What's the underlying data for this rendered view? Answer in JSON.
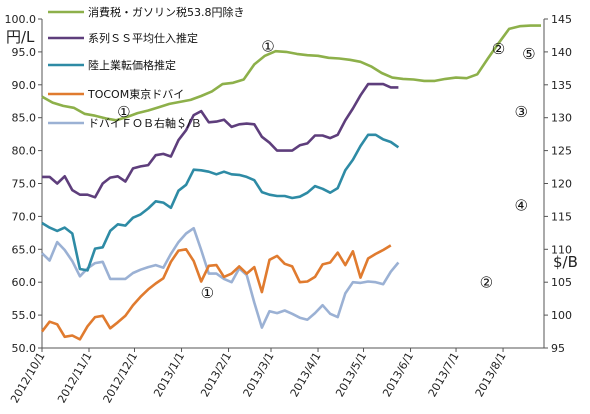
{
  "chart_data": {
    "type": "line",
    "left_axis": {
      "unit": "円/L",
      "range": [
        50.0,
        100.0
      ],
      "ticks": [
        "50.0",
        "55.0",
        "60.0",
        "65.0",
        "70.0",
        "75.0",
        "80.0",
        "85.0",
        "90.0",
        "95.0",
        "100.0"
      ]
    },
    "right_axis": {
      "unit": "$/B",
      "range": [
        95,
        145
      ],
      "ticks": [
        "95",
        "100",
        "105",
        "110",
        "115",
        "120",
        "125",
        "130",
        "135",
        "140",
        "145"
      ]
    },
    "x_axis": {
      "range": [
        "2012-10-01",
        "2013-08-28"
      ],
      "tick_labels": [
        "2012/10/1",
        "2012/11/1",
        "2012/12/1",
        "2013/1/1",
        "2013/2/1",
        "2013/3/1",
        "2013/4/1",
        "2013/5/1",
        "2013/6/1",
        "2013/7/1",
        "2013/8/1"
      ]
    },
    "grid": false,
    "legend_placement": "top-left, inside",
    "series": [
      {
        "name": "消費税・ガソリン税53.8円除き",
        "color": "#8DB04A",
        "axis": "left",
        "points": [
          [
            "2012-10-01",
            88.2
          ],
          [
            "2012-10-08",
            87.3
          ],
          [
            "2012-10-15",
            86.8
          ],
          [
            "2012-10-22",
            86.5
          ],
          [
            "2012-10-29",
            85.6
          ],
          [
            "2012-11-05",
            85.3
          ],
          [
            "2012-11-12",
            84.9
          ],
          [
            "2012-11-19",
            84.6
          ],
          [
            "2012-11-26",
            85.1
          ],
          [
            "2012-12-03",
            85.7
          ],
          [
            "2012-12-10",
            86.1
          ],
          [
            "2012-12-17",
            86.6
          ],
          [
            "2012-12-24",
            87.1
          ],
          [
            "2012-12-31",
            87.4
          ],
          [
            "2013-01-07",
            87.7
          ],
          [
            "2013-01-14",
            88.3
          ],
          [
            "2013-01-21",
            89.0
          ],
          [
            "2013-01-28",
            90.1
          ],
          [
            "2013-02-04",
            90.3
          ],
          [
            "2013-02-11",
            90.8
          ],
          [
            "2013-02-18",
            93.1
          ],
          [
            "2013-02-25",
            94.4
          ],
          [
            "2013-03-04",
            95.1
          ],
          [
            "2013-03-11",
            95.0
          ],
          [
            "2013-03-18",
            94.7
          ],
          [
            "2013-03-25",
            94.5
          ],
          [
            "2013-04-01",
            94.4
          ],
          [
            "2013-04-08",
            94.1
          ],
          [
            "2013-04-15",
            94.0
          ],
          [
            "2013-04-22",
            93.8
          ],
          [
            "2013-04-29",
            93.5
          ],
          [
            "2013-05-06",
            92.8
          ],
          [
            "2013-05-13",
            91.8
          ],
          [
            "2013-05-20",
            91.1
          ],
          [
            "2013-05-27",
            90.9
          ],
          [
            "2013-06-03",
            90.8
          ],
          [
            "2013-06-10",
            90.6
          ],
          [
            "2013-06-17",
            90.6
          ],
          [
            "2013-06-24",
            90.9
          ],
          [
            "2013-07-01",
            91.1
          ],
          [
            "2013-07-08",
            91.0
          ],
          [
            "2013-07-15",
            91.6
          ],
          [
            "2013-07-22",
            94.0
          ],
          [
            "2013-07-29",
            96.3
          ],
          [
            "2013-08-05",
            98.5
          ],
          [
            "2013-08-12",
            98.9
          ],
          [
            "2013-08-19",
            99.0
          ],
          [
            "2013-08-26",
            99.0
          ]
        ]
      },
      {
        "name": "系列ＳＳ平均仕入推定",
        "color": "#5E3E7C",
        "axis": "left",
        "points": [
          [
            "2012-10-01",
            76.0
          ],
          [
            "2012-10-06",
            76.0
          ],
          [
            "2012-10-11",
            75.0
          ],
          [
            "2012-10-16",
            76.1
          ],
          [
            "2012-10-21",
            74.0
          ],
          [
            "2012-10-26",
            73.3
          ],
          [
            "2012-10-31",
            73.3
          ],
          [
            "2012-11-05",
            72.9
          ],
          [
            "2012-11-10",
            75.0
          ],
          [
            "2012-11-15",
            75.9
          ],
          [
            "2012-11-20",
            76.1
          ],
          [
            "2012-11-25",
            75.3
          ],
          [
            "2012-11-30",
            77.3
          ],
          [
            "2012-12-05",
            77.6
          ],
          [
            "2012-12-10",
            77.8
          ],
          [
            "2012-12-15",
            79.3
          ],
          [
            "2012-12-20",
            79.5
          ],
          [
            "2012-12-25",
            79.1
          ],
          [
            "2012-12-30",
            81.6
          ],
          [
            "2013-01-04",
            83.1
          ],
          [
            "2013-01-09",
            85.4
          ],
          [
            "2013-01-14",
            86.0
          ],
          [
            "2013-01-19",
            84.3
          ],
          [
            "2013-01-24",
            84.4
          ],
          [
            "2013-01-29",
            84.7
          ],
          [
            "2013-02-03",
            83.6
          ],
          [
            "2013-02-08",
            84.0
          ],
          [
            "2013-02-13",
            84.1
          ],
          [
            "2013-02-18",
            84.0
          ],
          [
            "2013-02-23",
            82.1
          ],
          [
            "2013-02-28",
            81.2
          ],
          [
            "2013-03-05",
            80.0
          ],
          [
            "2013-03-10",
            80.0
          ],
          [
            "2013-03-15",
            80.0
          ],
          [
            "2013-03-20",
            80.8
          ],
          [
            "2013-03-25",
            81.1
          ],
          [
            "2013-03-30",
            82.3
          ],
          [
            "2013-04-04",
            82.3
          ],
          [
            "2013-04-09",
            81.9
          ],
          [
            "2013-04-14",
            82.4
          ],
          [
            "2013-04-19",
            84.6
          ],
          [
            "2013-04-24",
            86.4
          ],
          [
            "2013-04-29",
            88.4
          ],
          [
            "2013-05-04",
            90.1
          ],
          [
            "2013-05-09",
            90.1
          ],
          [
            "2013-05-14",
            90.1
          ],
          [
            "2013-05-19",
            89.6
          ],
          [
            "2013-05-24",
            89.6
          ]
        ]
      },
      {
        "name": "陸上業転価格推定",
        "color": "#2E8BA5",
        "axis": "left",
        "points": [
          [
            "2012-10-01",
            69.0
          ],
          [
            "2012-10-06",
            68.3
          ],
          [
            "2012-10-11",
            67.8
          ],
          [
            "2012-10-16",
            68.3
          ],
          [
            "2012-10-21",
            67.4
          ],
          [
            "2012-10-26",
            62.0
          ],
          [
            "2012-10-31",
            61.8
          ],
          [
            "2012-11-05",
            65.1
          ],
          [
            "2012-11-10",
            65.3
          ],
          [
            "2012-11-15",
            67.8
          ],
          [
            "2012-11-20",
            68.8
          ],
          [
            "2012-11-25",
            68.6
          ],
          [
            "2012-11-30",
            69.8
          ],
          [
            "2012-12-05",
            70.3
          ],
          [
            "2012-12-10",
            71.2
          ],
          [
            "2012-12-15",
            72.3
          ],
          [
            "2012-12-20",
            72.1
          ],
          [
            "2012-12-25",
            71.3
          ],
          [
            "2012-12-30",
            73.9
          ],
          [
            "2013-01-04",
            74.8
          ],
          [
            "2013-01-09",
            77.1
          ],
          [
            "2013-01-14",
            77.0
          ],
          [
            "2013-01-19",
            76.8
          ],
          [
            "2013-01-24",
            76.4
          ],
          [
            "2013-01-29",
            76.8
          ],
          [
            "2013-02-03",
            76.4
          ],
          [
            "2013-02-08",
            76.3
          ],
          [
            "2013-02-13",
            76.0
          ],
          [
            "2013-02-18",
            75.5
          ],
          [
            "2013-02-23",
            73.7
          ],
          [
            "2013-02-28",
            73.3
          ],
          [
            "2013-03-05",
            73.1
          ],
          [
            "2013-03-10",
            73.1
          ],
          [
            "2013-03-15",
            72.8
          ],
          [
            "2013-03-20",
            73.0
          ],
          [
            "2013-03-25",
            73.6
          ],
          [
            "2013-03-30",
            74.6
          ],
          [
            "2013-04-04",
            74.2
          ],
          [
            "2013-04-09",
            73.6
          ],
          [
            "2013-04-14",
            74.3
          ],
          [
            "2013-04-19",
            77.0
          ],
          [
            "2013-04-24",
            78.6
          ],
          [
            "2013-04-29",
            80.7
          ],
          [
            "2013-05-04",
            82.4
          ],
          [
            "2013-05-09",
            82.4
          ],
          [
            "2013-05-14",
            81.7
          ],
          [
            "2013-05-19",
            81.3
          ],
          [
            "2013-05-24",
            80.5
          ]
        ]
      },
      {
        "name": "TOCOM東京ドバイ",
        "color": "#E07B2F",
        "axis": "left",
        "points": [
          [
            "2012-10-01",
            52.5
          ],
          [
            "2012-10-06",
            54.0
          ],
          [
            "2012-10-11",
            53.6
          ],
          [
            "2012-10-16",
            51.7
          ],
          [
            "2012-10-21",
            51.9
          ],
          [
            "2012-10-26",
            51.3
          ],
          [
            "2012-10-31",
            53.3
          ],
          [
            "2012-11-05",
            54.7
          ],
          [
            "2012-11-10",
            54.9
          ],
          [
            "2012-11-15",
            53.0
          ],
          [
            "2012-11-20",
            53.9
          ],
          [
            "2012-11-25",
            54.9
          ],
          [
            "2012-11-30",
            56.5
          ],
          [
            "2012-12-05",
            57.8
          ],
          [
            "2012-12-10",
            58.9
          ],
          [
            "2012-12-15",
            59.8
          ],
          [
            "2012-12-20",
            60.6
          ],
          [
            "2012-12-25",
            63.1
          ],
          [
            "2012-12-30",
            64.8
          ],
          [
            "2013-01-04",
            65.0
          ],
          [
            "2013-01-09",
            63.2
          ],
          [
            "2013-01-14",
            60.1
          ],
          [
            "2013-01-19",
            62.5
          ],
          [
            "2013-01-24",
            62.6
          ],
          [
            "2013-01-29",
            60.8
          ],
          [
            "2013-02-03",
            61.3
          ],
          [
            "2013-02-08",
            62.4
          ],
          [
            "2013-02-13",
            61.3
          ],
          [
            "2013-02-18",
            62.3
          ],
          [
            "2013-02-23",
            58.5
          ],
          [
            "2013-02-28",
            63.4
          ],
          [
            "2013-03-05",
            64.0
          ],
          [
            "2013-03-10",
            62.8
          ],
          [
            "2013-03-15",
            62.4
          ],
          [
            "2013-03-20",
            60.0
          ],
          [
            "2013-03-25",
            60.1
          ],
          [
            "2013-03-30",
            60.8
          ],
          [
            "2013-04-04",
            62.7
          ],
          [
            "2013-04-09",
            63.0
          ],
          [
            "2013-04-14",
            64.5
          ],
          [
            "2013-04-19",
            62.6
          ],
          [
            "2013-04-24",
            64.7
          ],
          [
            "2013-04-29",
            60.7
          ],
          [
            "2013-05-04",
            63.6
          ],
          [
            "2013-05-09",
            64.3
          ],
          [
            "2013-05-14",
            64.9
          ],
          [
            "2013-05-19",
            65.6
          ]
        ]
      },
      {
        "name": "ドバイＦＯＢ右軸＄/Ｂ",
        "color": "#9BB1D4",
        "axis": "right",
        "points": [
          [
            "2012-10-01",
            109.4
          ],
          [
            "2012-10-06",
            108.3
          ],
          [
            "2012-10-11",
            111.1
          ],
          [
            "2012-10-16",
            109.9
          ],
          [
            "2012-10-21",
            108.2
          ],
          [
            "2012-10-26",
            105.9
          ],
          [
            "2012-10-31",
            107.1
          ],
          [
            "2012-11-05",
            107.9
          ],
          [
            "2012-11-10",
            108.1
          ],
          [
            "2012-11-15",
            105.5
          ],
          [
            "2012-11-20",
            105.5
          ],
          [
            "2012-11-25",
            105.5
          ],
          [
            "2012-11-30",
            106.4
          ],
          [
            "2012-12-05",
            106.9
          ],
          [
            "2012-12-10",
            107.3
          ],
          [
            "2012-12-15",
            107.6
          ],
          [
            "2012-12-20",
            107.2
          ],
          [
            "2012-12-25",
            109.3
          ],
          [
            "2012-12-30",
            111.1
          ],
          [
            "2013-01-04",
            112.4
          ],
          [
            "2013-01-09",
            113.2
          ],
          [
            "2013-01-14",
            109.9
          ],
          [
            "2013-01-19",
            106.3
          ],
          [
            "2013-01-24",
            106.3
          ],
          [
            "2013-01-29",
            105.5
          ],
          [
            "2013-02-03",
            105.0
          ],
          [
            "2013-02-08",
            107.1
          ],
          [
            "2013-02-13",
            106.1
          ],
          [
            "2013-02-18",
            101.9
          ],
          [
            "2013-02-23",
            98.1
          ],
          [
            "2013-02-28",
            100.6
          ],
          [
            "2013-03-05",
            100.3
          ],
          [
            "2013-03-10",
            100.7
          ],
          [
            "2013-03-15",
            100.2
          ],
          [
            "2013-03-20",
            99.6
          ],
          [
            "2013-03-25",
            99.3
          ],
          [
            "2013-03-30",
            100.3
          ],
          [
            "2013-04-04",
            101.5
          ],
          [
            "2013-04-09",
            100.2
          ],
          [
            "2013-04-14",
            99.7
          ],
          [
            "2013-04-19",
            103.3
          ],
          [
            "2013-04-24",
            105.0
          ],
          [
            "2013-04-29",
            104.9
          ],
          [
            "2013-05-04",
            105.1
          ],
          [
            "2013-05-09",
            105.0
          ],
          [
            "2013-05-14",
            104.7
          ],
          [
            "2013-05-19",
            106.6
          ],
          [
            "2013-05-24",
            108.0
          ]
        ]
      }
    ],
    "annotations": [
      {
        "label": "①",
        "x": "2013-02-27",
        "y": 96.0,
        "axis": "left"
      },
      {
        "label": "①",
        "x": "2012-11-24",
        "y": 86.0,
        "axis": "left"
      },
      {
        "label": "①",
        "x": "2013-01-18",
        "y": 58.5,
        "axis": "left"
      },
      {
        "label": "②",
        "x": "2013-07-29",
        "y": 95.6,
        "axis": "left"
      },
      {
        "label": "⑤",
        "x": "2013-08-18",
        "y": 94.8,
        "axis": "left"
      },
      {
        "label": "③",
        "x": "2013-08-13",
        "y": 86.0,
        "axis": "left"
      },
      {
        "label": "④",
        "x": "2013-08-13",
        "y": 71.8,
        "axis": "left"
      },
      {
        "label": "②",
        "x": "2013-07-21",
        "y": 60.1,
        "axis": "left"
      }
    ]
  }
}
